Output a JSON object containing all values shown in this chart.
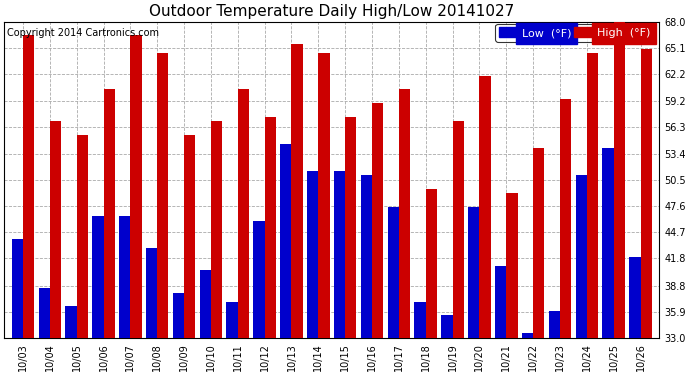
{
  "title": "Outdoor Temperature Daily High/Low 20141027",
  "copyright": "Copyright 2014 Cartronics.com",
  "legend_low": "Low  (°F)",
  "legend_high": "High  (°F)",
  "dates": [
    "10/03",
    "10/04",
    "10/05",
    "10/06",
    "10/07",
    "10/08",
    "10/09",
    "10/10",
    "10/11",
    "10/12",
    "10/13",
    "10/14",
    "10/15",
    "10/16",
    "10/17",
    "10/18",
    "10/19",
    "10/20",
    "10/21",
    "10/22",
    "10/23",
    "10/24",
    "10/25",
    "10/26"
  ],
  "highs": [
    66.5,
    57.0,
    55.5,
    60.5,
    66.5,
    64.5,
    55.5,
    57.0,
    60.5,
    57.5,
    65.5,
    64.5,
    57.5,
    59.0,
    60.5,
    49.5,
    57.0,
    62.0,
    49.0,
    54.0,
    59.5,
    64.5,
    68.0,
    65.0
  ],
  "lows": [
    44.0,
    38.5,
    36.5,
    46.5,
    46.5,
    43.0,
    38.0,
    40.5,
    37.0,
    46.0,
    54.5,
    51.5,
    51.5,
    51.0,
    47.5,
    37.0,
    35.5,
    47.5,
    41.0,
    33.5,
    36.0,
    51.0,
    54.0,
    42.0
  ],
  "ymin": 33.0,
  "ymax": 68.0,
  "yticks": [
    33.0,
    35.9,
    38.8,
    41.8,
    44.7,
    47.6,
    50.5,
    53.4,
    56.3,
    59.2,
    62.2,
    65.1,
    68.0
  ],
  "low_color": "#0000cc",
  "high_color": "#cc0000",
  "background_color": "#ffffff",
  "grid_color": "#aaaaaa",
  "title_fontsize": 11,
  "copyright_fontsize": 7,
  "tick_fontsize": 7,
  "legend_fontsize": 8
}
